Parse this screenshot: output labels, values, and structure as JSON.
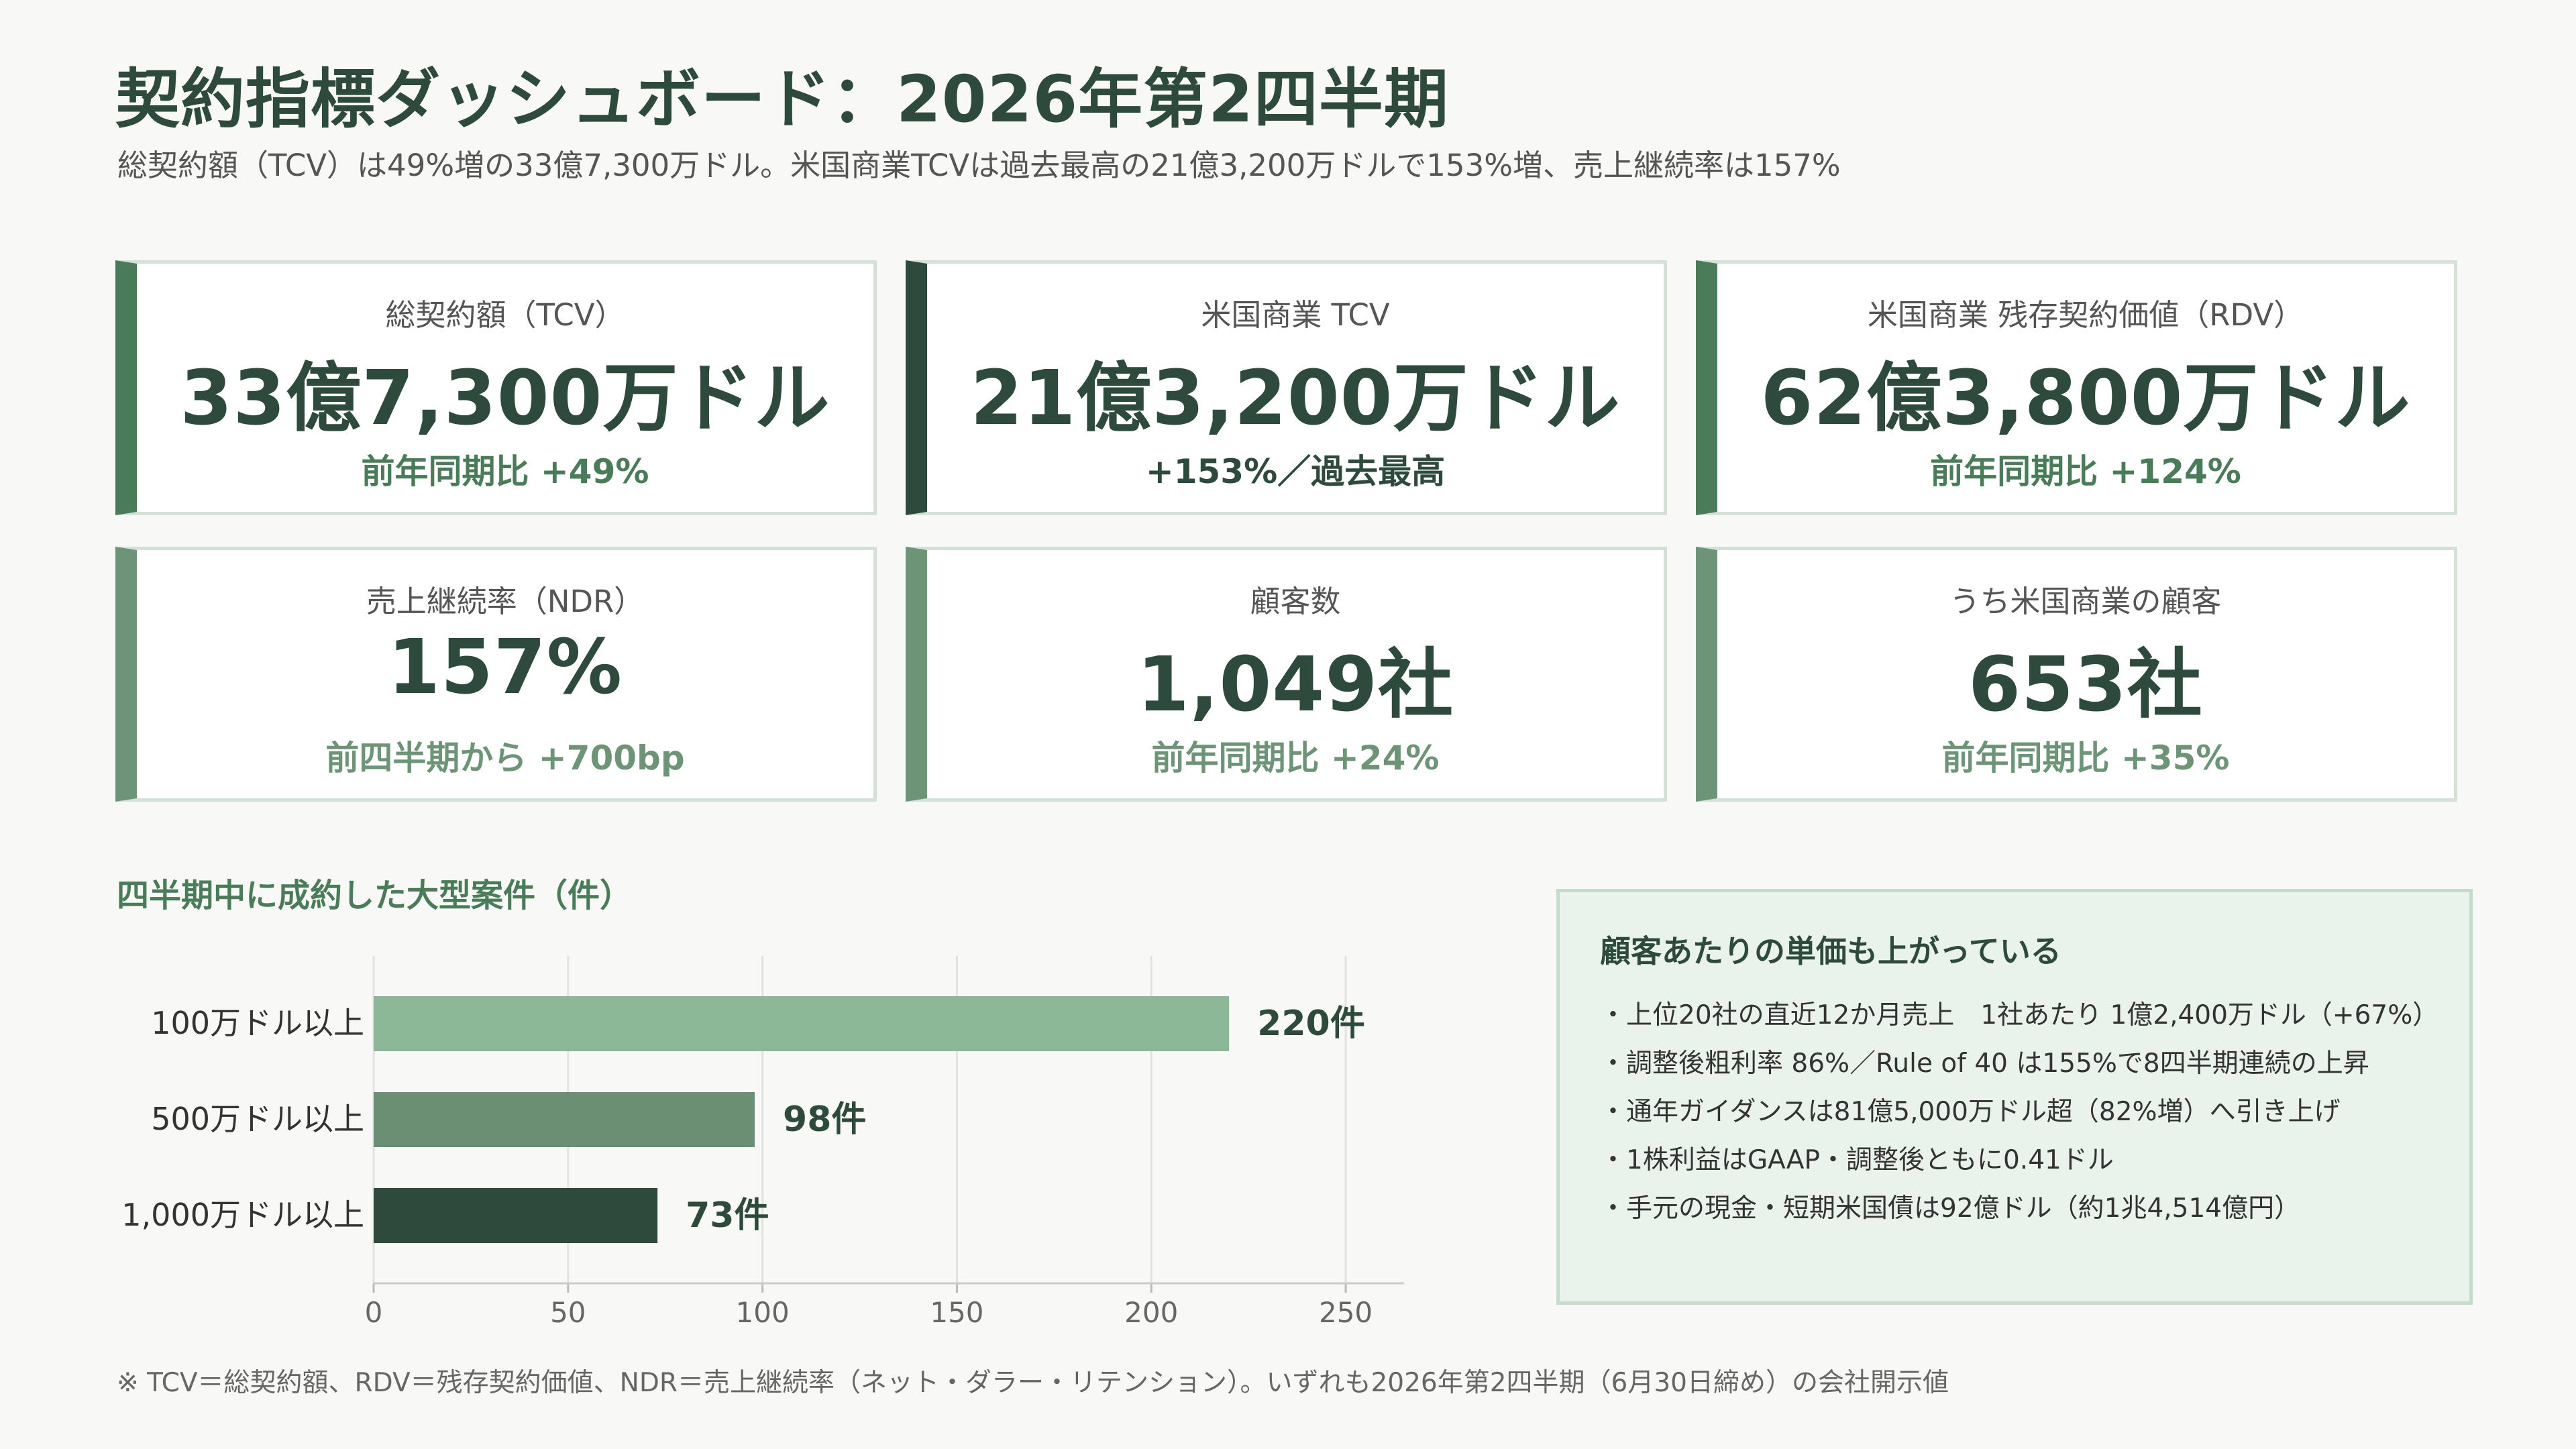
{
  "title": "契約指標ダッシュボード：2026年第2四半期",
  "subtitle": "総契約額（TCV）は49%増の33億7,300万ドル。米国商業TCVは過去最高の21億3,200万ドルで153%増、売上継続率は157%",
  "cards": [
    {
      "label": "総契約額（TCV）",
      "value": "33億7,300万ドル",
      "delta": "前年同期比 +49%"
    },
    {
      "label": "米国商業 TCV",
      "value": "21億3,200万ドル",
      "delta": "+153%／過去最高"
    },
    {
      "label": "米国商業 残存契約価値（RDV）",
      "value": "62億3,800万ドル",
      "delta": "前年同期比 +124%"
    },
    {
      "label": "売上継続率（NDR）",
      "value": "157%",
      "delta": "前四半期から +700bp"
    },
    {
      "label": "顧客数",
      "value": "1,049社",
      "delta": "前年同期比 +24%"
    },
    {
      "label": "うち米国商業の顧客",
      "value": "653社",
      "delta": "前年同期比 +35%"
    }
  ],
  "chart_data": {
    "type": "bar",
    "orientation": "horizontal",
    "title": "四半期中に成約した大型案件（件）",
    "categories": [
      "100万ドル以上",
      "500万ドル以上",
      "1,000万ドル以上"
    ],
    "values": [
      220,
      98,
      73
    ],
    "value_labels": [
      "220件",
      "98件",
      "73件"
    ],
    "colors": [
      "#8db897",
      "#6b8f72",
      "#2d4a3d"
    ],
    "xlim": [
      0,
      265
    ],
    "xticks": [
      0,
      50,
      100,
      150,
      200,
      250
    ],
    "grid": true
  },
  "note": {
    "title": "顧客あたりの単価も上がっている",
    "items": [
      "・上位20社の直近12か月売上　1社あたり 1億2,400万ドル（+67%）",
      "・調整後粗利率 86%／Rule of 40 は155%で8四半期連続の上昇",
      "・通年ガイダンスは81億5,000万ドル超（82%増）へ引き上げ",
      "・1株利益はGAAP・調整後ともに0.41ドル",
      "・手元の現金・短期米国債は92億ドル（約1兆4,514億円）"
    ]
  },
  "footer": "※ TCV＝総契約額、RDV＝残存契約価値、NDR＝売上継続率（ネット・ダラー・リテンション）。いずれも2026年第2四半期（6月30日締め）の会社開示値"
}
